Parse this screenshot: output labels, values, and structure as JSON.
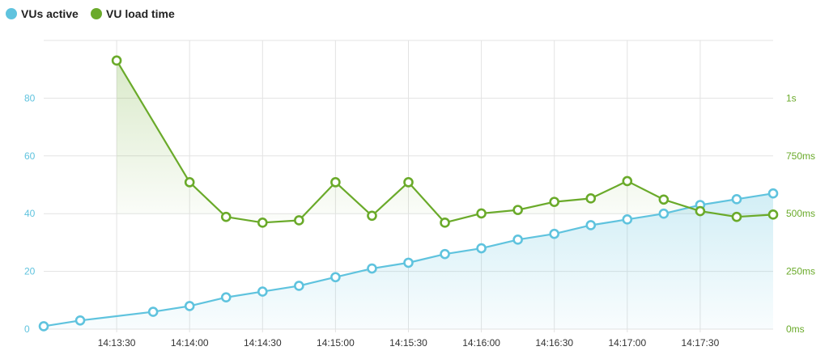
{
  "chart_data": {
    "type": "line",
    "title": "",
    "xlabel": "",
    "ylabel": "",
    "legend": {
      "placement": "top-left"
    },
    "grid": true,
    "colors": {
      "vus": "#5fc3de",
      "load": "#6aaa2a",
      "grid": "#e3e3e3"
    },
    "x_ticks": [
      "14:13:30",
      "14:14:00",
      "14:14:30",
      "14:15:00",
      "14:15:30",
      "14:16:00",
      "14:16:30",
      "14:17:00",
      "14:17:30"
    ],
    "x_tick_seconds": [
      30,
      60,
      90,
      120,
      150,
      180,
      210,
      240,
      270
    ],
    "xlim_seconds": [
      0,
      300
    ],
    "y_left": {
      "ticks": [
        0,
        20,
        40,
        60,
        80
      ],
      "ylim": [
        0,
        100
      ]
    },
    "y_right": {
      "ticks": [
        "0ms",
        "250ms",
        "500ms",
        "750ms",
        "1s"
      ],
      "tick_values_ms": [
        0,
        250,
        500,
        750,
        1000
      ],
      "ylim_ms": [
        0,
        1250
      ]
    },
    "series": [
      {
        "name": "VUs active",
        "axis": "left",
        "x_seconds": [
          0,
          15,
          45,
          60,
          75,
          90,
          105,
          120,
          135,
          150,
          165,
          180,
          195,
          210,
          225,
          240,
          255,
          270,
          285,
          300
        ],
        "values": [
          1,
          3,
          6,
          8,
          11,
          13,
          15,
          18,
          21,
          23,
          26,
          28,
          31,
          33,
          36,
          38,
          40,
          43,
          45,
          47
        ]
      },
      {
        "name": "VU load time",
        "axis": "right",
        "x_seconds": [
          30,
          60,
          75,
          90,
          105,
          120,
          135,
          150,
          165,
          180,
          195,
          210,
          225,
          240,
          255,
          270,
          285,
          300
        ],
        "values": [
          1163,
          636,
          486,
          461,
          471,
          636,
          491,
          636,
          461,
          501,
          516,
          551,
          566,
          641,
          561,
          511,
          486,
          496
        ]
      }
    ]
  }
}
